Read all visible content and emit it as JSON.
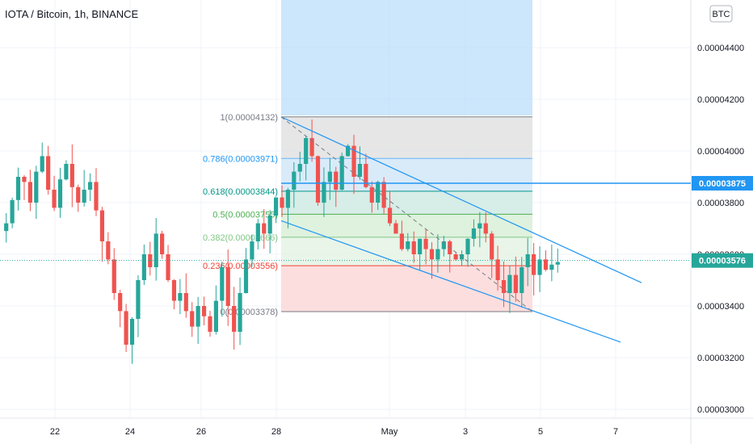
{
  "header": {
    "title": "IOTA / Bitcoin, 1h, BINANCE",
    "currency_badge": "BTC"
  },
  "colors": {
    "up": "#26a69a",
    "down": "#ef5350",
    "channel": "#2196f3",
    "horizontal_line": "#2196f3",
    "highlight_tag": "#2196f3",
    "last_price_tag": "#26a69a"
  },
  "chart_data": {
    "type": "candlestick",
    "title": "IOTA / Bitcoin, 1h, BINANCE",
    "y_axis": {
      "ticks": [
        "0.00004400",
        "0.00004200",
        "0.00004000",
        "0.00003800",
        "0.00003600",
        "0.00003400",
        "0.00003200",
        "0.00003000"
      ],
      "tick_values": [
        4.4e-05,
        4.2e-05,
        4e-05,
        3.8e-05,
        3.6e-05,
        3.4e-05,
        3.2e-05,
        3e-05
      ],
      "range": [
        2.93e-05,
        4.55e-05
      ]
    },
    "x_axis": {
      "ticks": [
        "22",
        "24",
        "26",
        "28",
        "May",
        "3",
        "5",
        "7"
      ]
    },
    "close_series_approx": [
      3.72e-05,
      3.81e-05,
      3.9e-05,
      3.88e-05,
      3.8e-05,
      3.92e-05,
      3.98e-05,
      3.85e-05,
      3.78e-05,
      3.89e-05,
      3.95e-05,
      3.86e-05,
      3.8e-05,
      3.85e-05,
      3.88e-05,
      3.77e-05,
      3.65e-05,
      3.58e-05,
      3.45e-05,
      3.38e-05,
      3.25e-05,
      3.35e-05,
      3.5e-05,
      3.6e-05,
      3.55e-05,
      3.68e-05,
      3.6e-05,
      3.5e-05,
      3.42e-05,
      3.45e-05,
      3.38e-05,
      3.32e-05,
      3.4e-05,
      3.36e-05,
      3.3e-05,
      3.42e-05,
      3.55e-05,
      3.4e-05,
      3.3e-05,
      3.45e-05,
      3.58e-05,
      3.65e-05,
      3.72e-05,
      3.68e-05,
      3.75e-05,
      3.82e-05,
      3.78e-05,
      3.85e-05,
      3.92e-05,
      3.95e-05,
      4.05e-05,
      3.98e-05,
      3.8e-05,
      3.88e-05,
      3.92e-05,
      3.85e-05,
      3.98e-05,
      4.02e-05,
      3.9e-05,
      3.95e-05,
      3.86e-05,
      3.8e-05,
      3.88e-05,
      3.78e-05,
      3.72e-05,
      3.68e-05,
      3.62e-05,
      3.65e-05,
      3.6e-05,
      3.66e-05,
      3.62e-05,
      3.58e-05,
      3.62e-05,
      3.65e-05,
      3.6e-05,
      3.58e-05,
      3.6e-05,
      3.66e-05,
      3.7e-05,
      3.72e-05,
      3.68e-05,
      3.58e-05,
      3.5e-05,
      3.45e-05,
      3.52e-05,
      3.45e-05,
      3.55e-05,
      3.6e-05,
      3.52e-05,
      3.58e-05,
      3.54e-05,
      3.56e-05,
      3.57e-05
    ],
    "fibonacci": {
      "levels": [
        {
          "ratio": "1",
          "price": 4.132e-05,
          "label": "1(0.00004132)"
        },
        {
          "ratio": "0.786",
          "price": 3.971e-05,
          "label": "0.786(0.00003971)"
        },
        {
          "ratio": "0.618",
          "price": 3.844e-05,
          "label": "0.618(0.00003844)"
        },
        {
          "ratio": "0.5",
          "price": 3.755e-05,
          "label": "0.5(0.00003755)"
        },
        {
          "ratio": "0.382",
          "price": 3.666e-05,
          "label": "0.382(0.00003666)"
        },
        {
          "ratio": "0.236",
          "price": 3.556e-05,
          "label": "0.236(0.00003556)"
        },
        {
          "ratio": "0",
          "price": 3.378e-05,
          "label": "0(0.00003378)"
        }
      ]
    },
    "horizontal_line": {
      "price": 3.875e-05,
      "label": "0.00003875"
    },
    "last_price": {
      "price": 3.576e-05,
      "label": "0.00003576"
    },
    "channel": {
      "upper": [
        {
          "x": "28",
          "y": 4.132e-05
        },
        {
          "x": "7",
          "y": 3.49e-05
        }
      ],
      "lower": [
        {
          "x": "28",
          "y": 3.73e-05
        },
        {
          "x": "7",
          "y": 3.26e-05
        }
      ]
    }
  }
}
